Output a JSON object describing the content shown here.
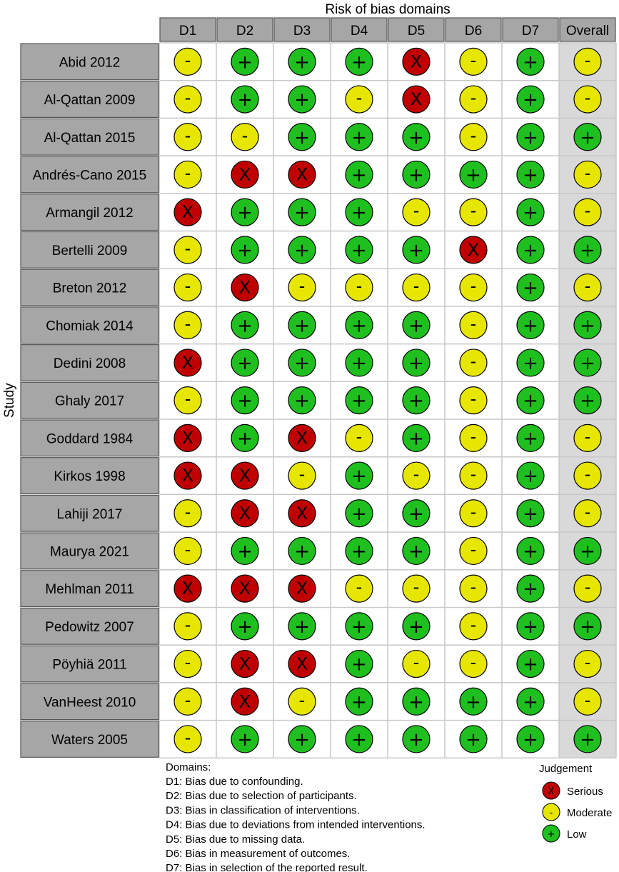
{
  "chart_data": {
    "type": "table",
    "title": "Risk of bias domains",
    "ylabel": "Study",
    "columns": [
      "D1",
      "D2",
      "D3",
      "D4",
      "D5",
      "D6",
      "D7",
      "Overall"
    ],
    "rows": [
      {
        "study": "Abid 2012",
        "values": [
          "M",
          "L",
          "L",
          "L",
          "S",
          "M",
          "L",
          "M"
        ]
      },
      {
        "study": "Al-Qattan 2009",
        "values": [
          "M",
          "L",
          "L",
          "M",
          "S",
          "M",
          "L",
          "M"
        ]
      },
      {
        "study": "Al-Qattan 2015",
        "values": [
          "M",
          "M",
          "L",
          "L",
          "L",
          "M",
          "L",
          "L"
        ]
      },
      {
        "study": "Andrés-Cano 2015",
        "values": [
          "M",
          "S",
          "S",
          "L",
          "L",
          "L",
          "L",
          "M"
        ]
      },
      {
        "study": "Armangil 2012",
        "values": [
          "S",
          "L",
          "L",
          "L",
          "M",
          "M",
          "L",
          "M"
        ]
      },
      {
        "study": "Bertelli 2009",
        "values": [
          "M",
          "L",
          "L",
          "L",
          "L",
          "S",
          "L",
          "L"
        ]
      },
      {
        "study": "Breton 2012",
        "values": [
          "M",
          "S",
          "M",
          "M",
          "M",
          "M",
          "L",
          "M"
        ]
      },
      {
        "study": "Chomiak 2014",
        "values": [
          "M",
          "L",
          "L",
          "L",
          "L",
          "M",
          "L",
          "L"
        ]
      },
      {
        "study": "Dedini 2008",
        "values": [
          "S",
          "L",
          "L",
          "L",
          "L",
          "M",
          "L",
          "L"
        ]
      },
      {
        "study": "Ghaly 2017",
        "values": [
          "M",
          "L",
          "L",
          "L",
          "L",
          "M",
          "L",
          "L"
        ]
      },
      {
        "study": "Goddard 1984",
        "values": [
          "S",
          "L",
          "S",
          "M",
          "L",
          "M",
          "L",
          "M"
        ]
      },
      {
        "study": "Kirkos 1998",
        "values": [
          "S",
          "S",
          "M",
          "L",
          "M",
          "M",
          "L",
          "M"
        ]
      },
      {
        "study": "Lahiji 2017",
        "values": [
          "M",
          "S",
          "S",
          "L",
          "L",
          "M",
          "L",
          "M"
        ]
      },
      {
        "study": "Maurya 2021",
        "values": [
          "M",
          "L",
          "L",
          "L",
          "L",
          "M",
          "L",
          "L"
        ]
      },
      {
        "study": "Mehlman 2011",
        "values": [
          "S",
          "S",
          "S",
          "M",
          "M",
          "M",
          "L",
          "M"
        ]
      },
      {
        "study": "Pedowitz 2007",
        "values": [
          "M",
          "L",
          "L",
          "L",
          "L",
          "M",
          "L",
          "L"
        ]
      },
      {
        "study": "Pöyhiä 2011",
        "values": [
          "M",
          "S",
          "S",
          "L",
          "M",
          "M",
          "L",
          "M"
        ]
      },
      {
        "study": "VanHeest 2010",
        "values": [
          "M",
          "S",
          "M",
          "L",
          "L",
          "L",
          "L",
          "M"
        ]
      },
      {
        "study": "Waters 2005",
        "values": [
          "M",
          "L",
          "L",
          "L",
          "L",
          "L",
          "L",
          "L"
        ]
      }
    ],
    "judgements": {
      "S": {
        "label": "Serious",
        "symbol": "X",
        "legend_symbol": "X",
        "color": "#c00000"
      },
      "M": {
        "label": "Moderate",
        "symbol": "-",
        "legend_symbol": "-",
        "color": "#e6e600"
      },
      "L": {
        "label": "Low",
        "symbol": "+",
        "legend_symbol": "+",
        "color": "#1fbf1f"
      }
    },
    "legend_order": [
      "S",
      "M",
      "L"
    ],
    "legend_title": "Judgement",
    "domains_title": "Domains:",
    "domains": [
      "D1: Bias due to confounding.",
      "D2: Bias due to selection of participants.",
      "D3: Bias in classification of interventions.",
      "D4: Bias due to deviations from intended interventions.",
      "D5: Bias due to missing data.",
      "D6: Bias in measurement of outcomes.",
      "D7: Bias in selection of the reported result."
    ],
    "colors": {
      "header_fill": "#a6a6a6",
      "study_fill": "#a6a6a6",
      "overall_fill": "#d9d9d9",
      "grid_line": "#c8c8c8"
    }
  }
}
